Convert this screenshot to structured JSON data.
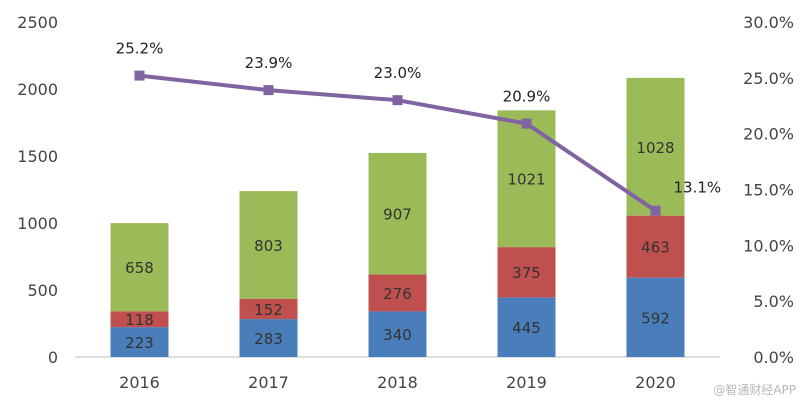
{
  "chart_data": {
    "type": "bar",
    "stacked": true,
    "categories": [
      "2016",
      "2017",
      "2018",
      "2019",
      "2020"
    ],
    "series": [
      {
        "name": "",
        "color": "#4a7ebb",
        "values": [
          223,
          283,
          340,
          445,
          592
        ]
      },
      {
        "name": "",
        "color": "#c0504d",
        "values": [
          118,
          152,
          276,
          375,
          463
        ]
      },
      {
        "name": "",
        "color": "#9bbb59",
        "values": [
          658,
          803,
          907,
          1021,
          1028
        ]
      }
    ],
    "line_series": {
      "name": "",
      "axis": "right",
      "color": "#8064a2",
      "marker": "square",
      "values": [
        25.2,
        23.9,
        23.0,
        20.9,
        13.1
      ],
      "labels": [
        "25.2%",
        "23.9%",
        "23.0%",
        "20.9%",
        "13.1%"
      ]
    },
    "y_left": {
      "ticks": [
        "0",
        "500",
        "1000",
        "1500",
        "2000",
        "2500"
      ],
      "ylim": [
        0,
        2500
      ]
    },
    "y_right": {
      "ticks": [
        "0.0%",
        "5.0%",
        "10.0%",
        "15.0%",
        "20.0%",
        "25.0%",
        "30.0%"
      ],
      "ylim": [
        0,
        30
      ]
    },
    "title": "",
    "xlabel": "",
    "ylabel": "",
    "grid": false,
    "legend": "none"
  },
  "watermark": {
    "text": "@智通财经APP"
  }
}
